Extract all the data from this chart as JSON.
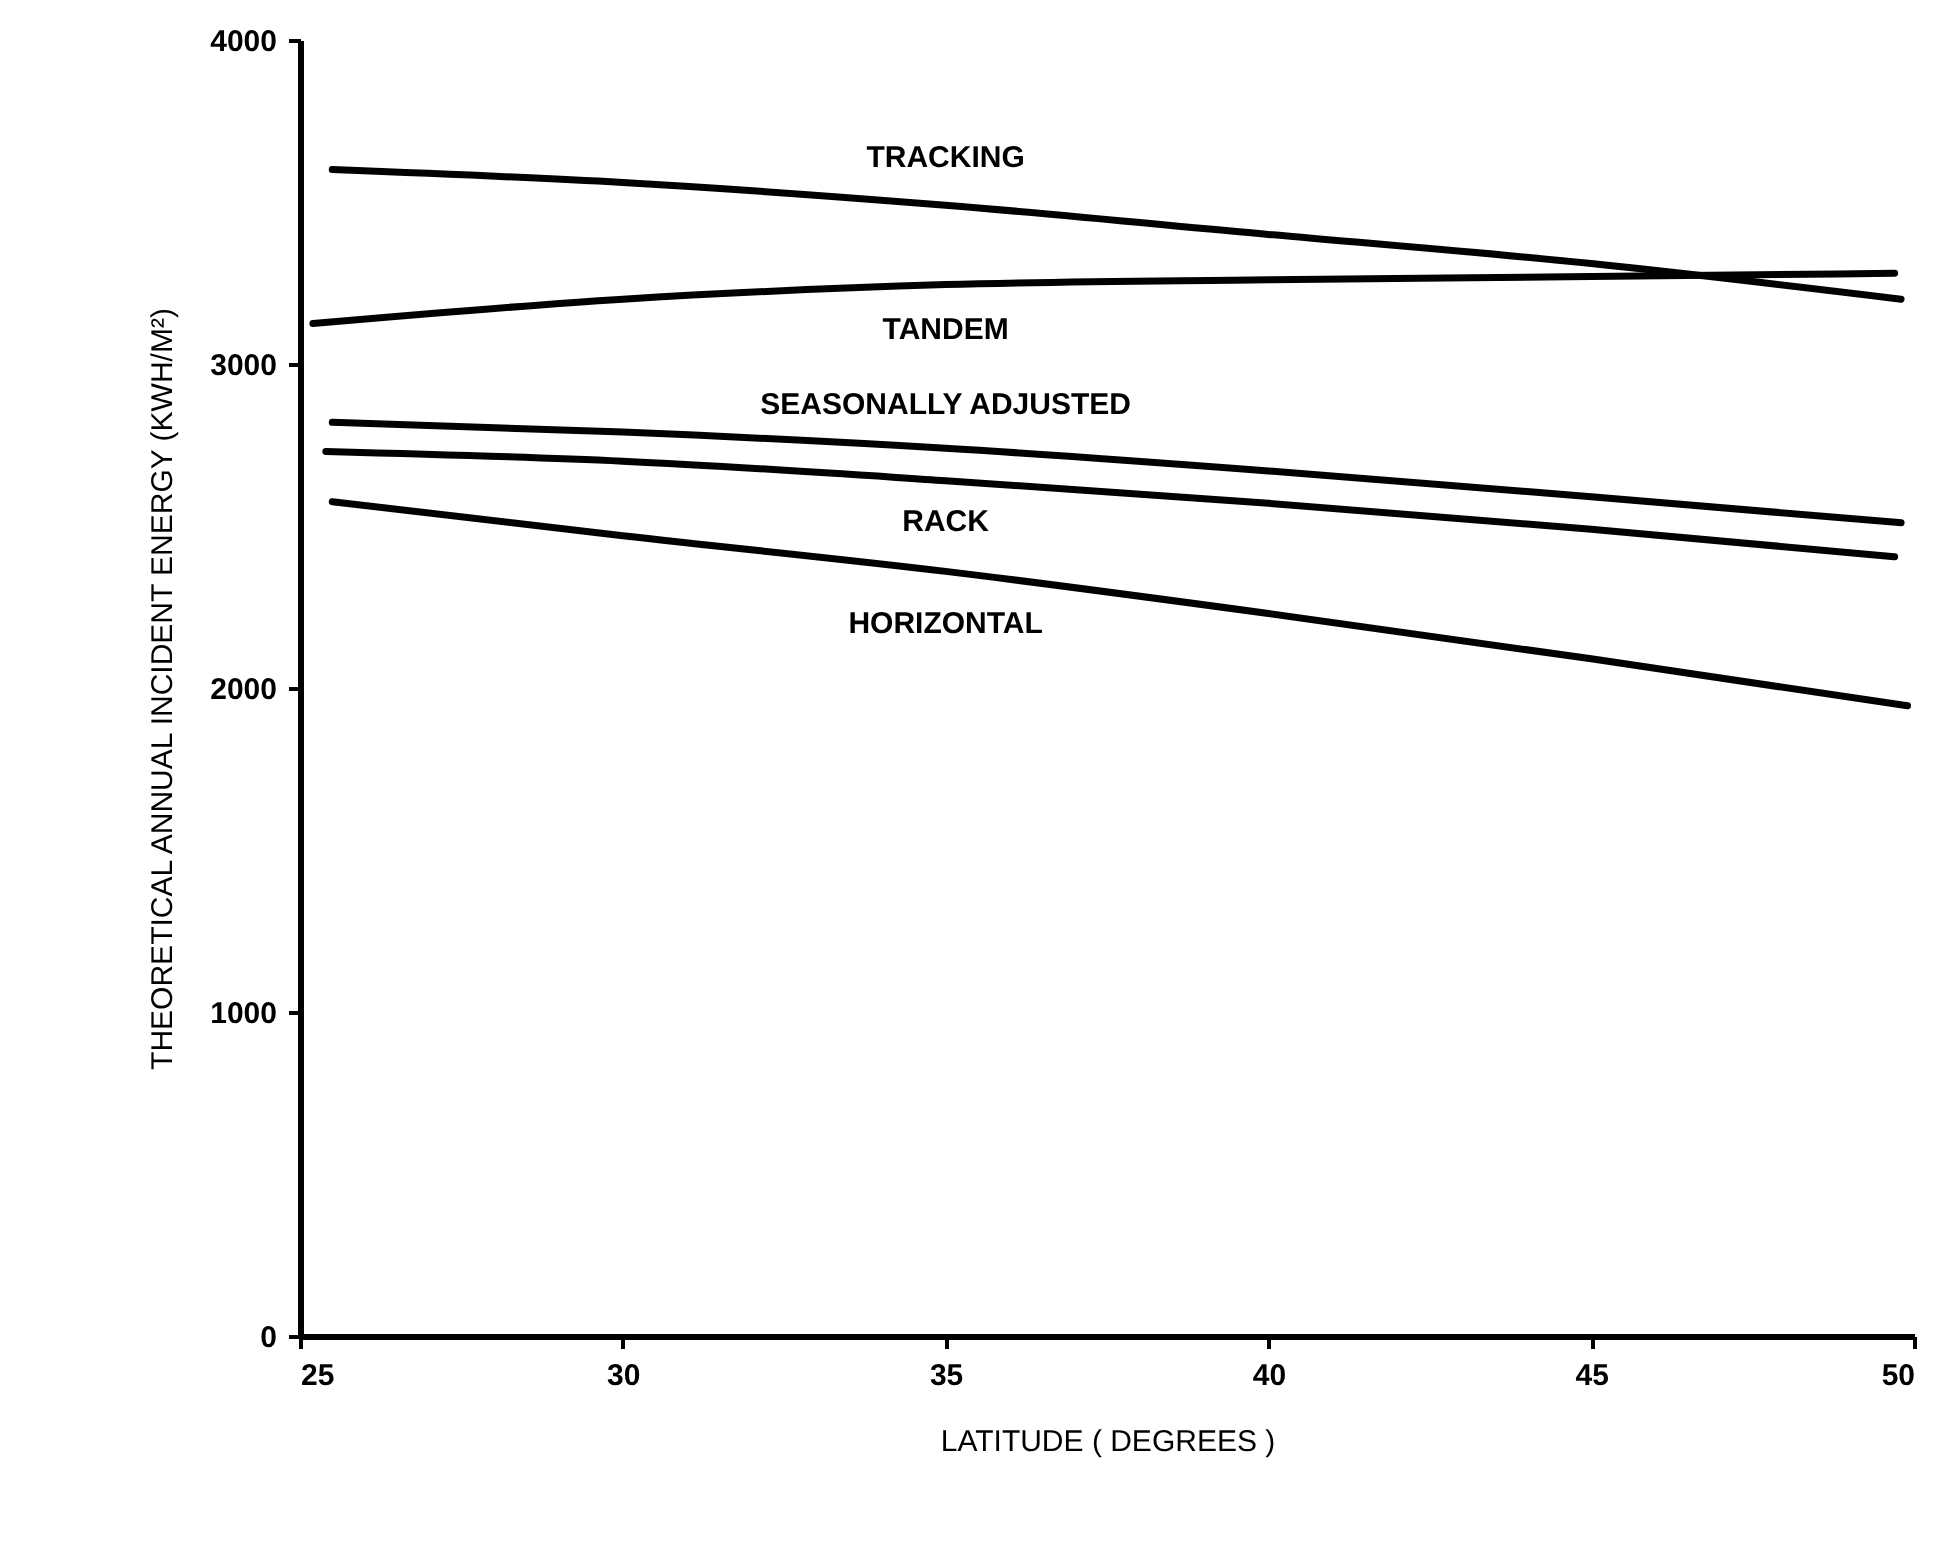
{
  "chart_data": {
    "type": "line",
    "xlabel": "LATITUDE   ( DEGREES )",
    "ylabel": "THEORETICAL ANNUAL INCIDENT ENERGY (KWH/M²)",
    "xlim": [
      25,
      50
    ],
    "ylim": [
      0,
      4000
    ],
    "xticks": [
      25,
      30,
      35,
      40,
      45,
      50
    ],
    "yticks": [
      0,
      1000,
      2000,
      3000,
      4000
    ],
    "grid": false,
    "legend": false,
    "marker": "none",
    "line_style": "solid",
    "series": [
      {
        "name": "TRACKING",
        "color": "#000000",
        "x": [
          25.5,
          30,
          35,
          40,
          45,
          49.8
        ],
        "values": [
          3600,
          3560,
          3490,
          3400,
          3310,
          3200
        ]
      },
      {
        "name": "TANDEM",
        "color": "#000000",
        "x": [
          25.2,
          30,
          35,
          40,
          45,
          49.7
        ],
        "values": [
          3125,
          3200,
          3245,
          3260,
          3270,
          3280
        ]
      },
      {
        "name": "SEASONALLY ADJUSTED",
        "color": "#000000",
        "x": [
          25.5,
          30,
          35,
          40,
          45,
          49.8
        ],
        "values": [
          2820,
          2790,
          2740,
          2670,
          2590,
          2510
        ]
      },
      {
        "name": "RACK",
        "color": "#000000",
        "x": [
          25.4,
          30,
          35,
          40,
          45,
          49.7
        ],
        "values": [
          2730,
          2700,
          2640,
          2570,
          2490,
          2405
        ]
      },
      {
        "name": "HORIZONTAL",
        "color": "#000000",
        "x": [
          25.5,
          30,
          35,
          40,
          45,
          49.9
        ],
        "values": [
          2575,
          2470,
          2360,
          2230,
          2090,
          1945
        ]
      }
    ]
  }
}
